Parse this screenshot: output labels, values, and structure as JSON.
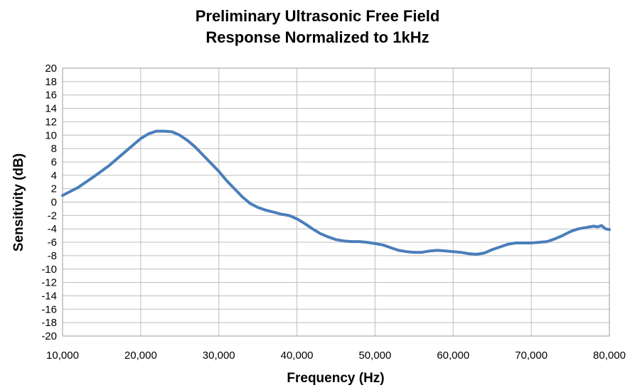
{
  "chart_data": {
    "type": "line",
    "title_lines": [
      "Preliminary Ultrasonic Free Field",
      "Response Normalized to 1kHz"
    ],
    "xlabel": "Frequency (Hz)",
    "ylabel": "Sensitivity (dB)",
    "xlim": [
      10000,
      80000
    ],
    "ylim": [
      -20,
      20
    ],
    "x_ticks": [
      10000,
      20000,
      30000,
      40000,
      50000,
      60000,
      70000,
      80000
    ],
    "x_tick_labels": [
      "10,000",
      "20,000",
      "30,000",
      "40,000",
      "50,000",
      "60,000",
      "70,000",
      "80,000"
    ],
    "y_ticks": [
      20,
      18,
      16,
      14,
      12,
      10,
      8,
      6,
      4,
      2,
      0,
      -2,
      -4,
      -6,
      -8,
      -10,
      -12,
      -14,
      -16,
      -18,
      -20
    ],
    "y_tick_labels": [
      "20",
      "18",
      "16",
      "14",
      "12",
      "10",
      "8",
      "6",
      "4",
      "2",
      "0",
      "-2",
      "-4",
      "-6",
      "-8",
      "-10",
      "-12",
      "-14",
      "-16",
      "-18",
      "-20"
    ],
    "grid": true,
    "legend": "none",
    "series": [
      {
        "color": "#4a7ebb",
        "x": [
          10000,
          12000,
          14000,
          16000,
          18000,
          20000,
          21000,
          22000,
          23000,
          24000,
          25000,
          26000,
          27000,
          28000,
          29000,
          30000,
          31000,
          32000,
          33000,
          34000,
          35000,
          36000,
          37000,
          38000,
          39000,
          40000,
          41000,
          42000,
          43000,
          44000,
          45000,
          46000,
          47000,
          48000,
          49000,
          50000,
          51000,
          52000,
          53000,
          54000,
          55000,
          56000,
          57000,
          58000,
          59000,
          60000,
          61000,
          62000,
          63000,
          64000,
          65000,
          66000,
          67000,
          68000,
          69000,
          70000,
          71000,
          72000,
          73000,
          74000,
          75000,
          76000,
          77000,
          78000,
          78500,
          79000,
          79500,
          80000
        ],
        "y": [
          1.0,
          2.2,
          3.8,
          5.5,
          7.5,
          9.5,
          10.2,
          10.6,
          10.6,
          10.5,
          10.0,
          9.2,
          8.2,
          7.0,
          5.8,
          4.6,
          3.2,
          2.0,
          0.8,
          -0.2,
          -0.8,
          -1.2,
          -1.5,
          -1.8,
          -2.0,
          -2.5,
          -3.2,
          -4.0,
          -4.7,
          -5.2,
          -5.6,
          -5.8,
          -5.9,
          -5.9,
          -6.0,
          -6.2,
          -6.4,
          -6.8,
          -7.2,
          -7.4,
          -7.5,
          -7.5,
          -7.3,
          -7.2,
          -7.3,
          -7.4,
          -7.5,
          -7.7,
          -7.8,
          -7.6,
          -7.1,
          -6.7,
          -6.3,
          -6.1,
          -6.1,
          -6.1,
          -6.0,
          -5.9,
          -5.5,
          -5.0,
          -4.4,
          -4.0,
          -3.8,
          -3.6,
          -3.7,
          -3.5,
          -4.0,
          -4.1
        ]
      }
    ]
  }
}
